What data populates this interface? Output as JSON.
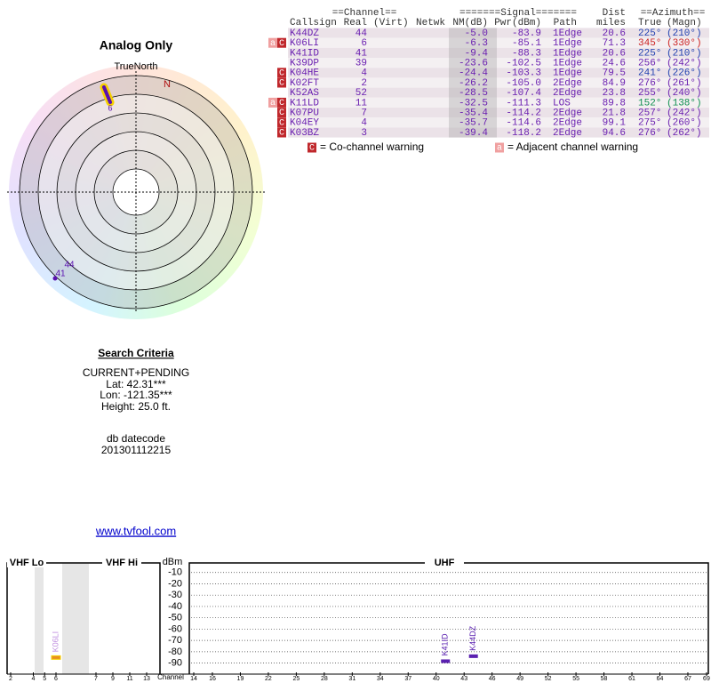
{
  "polar": {
    "title": "Analog Only",
    "north_label": "TrueNorth",
    "magnetic_north_label": "N",
    "markers": [
      "6",
      "44",
      "41"
    ]
  },
  "table": {
    "group_headers": [
      "==Channel==",
      "=======Signal=======",
      "Dist",
      "==Azimuth=="
    ],
    "columns": [
      "Callsign",
      "Real",
      "(Virt)",
      "Netwk",
      "NM(dB)",
      "Pwr(dBm)",
      "Path",
      "miles",
      "True",
      "(Magn)"
    ],
    "rows": [
      {
        "callsign": "K44DZ",
        "real": "44",
        "nm": "-5.0",
        "pwr": "-83.9",
        "path": "1Edge",
        "miles": "20.6",
        "true_az": "225°",
        "magn_az": "(210°)",
        "azimuth_color": "#2040b0"
      },
      {
        "callsign": "K06LI",
        "real": "6",
        "nm": "-6.3",
        "pwr": "-85.1",
        "path": "1Edge",
        "miles": "71.3",
        "true_az": "345°",
        "magn_az": "(330°)",
        "azimuth_color": "#cc2020",
        "flags": [
          "a",
          "C"
        ]
      },
      {
        "callsign": "K41ID",
        "real": "41",
        "nm": "-9.4",
        "pwr": "-88.3",
        "path": "1Edge",
        "miles": "20.6",
        "true_az": "225°",
        "magn_az": "(210°)",
        "azimuth_color": "#2040b0"
      },
      {
        "callsign": "K39DP",
        "real": "39",
        "nm": "-23.6",
        "pwr": "-102.5",
        "path": "1Edge",
        "miles": "24.6",
        "true_az": "256°",
        "magn_az": "(242°)",
        "azimuth_color": "#6a1fb0"
      },
      {
        "callsign": "K04HE",
        "real": "4",
        "nm": "-24.4",
        "pwr": "-103.3",
        "path": "1Edge",
        "miles": "79.5",
        "true_az": "241°",
        "magn_az": "(226°)",
        "azimuth_color": "#2040b0",
        "flags": [
          "C"
        ]
      },
      {
        "callsign": "K02FT",
        "real": "2",
        "nm": "-26.2",
        "pwr": "-105.0",
        "path": "2Edge",
        "miles": "84.9",
        "true_az": "276°",
        "magn_az": "(261°)",
        "azimuth_color": "#6a1fb0",
        "flags": [
          "C"
        ]
      },
      {
        "callsign": "K52AS",
        "real": "52",
        "nm": "-28.5",
        "pwr": "-107.4",
        "path": "2Edge",
        "miles": "23.8",
        "true_az": "255°",
        "magn_az": "(240°)",
        "azimuth_color": "#6a1fb0"
      },
      {
        "callsign": "K11LD",
        "real": "11",
        "nm": "-32.5",
        "pwr": "-111.3",
        "path": "LOS",
        "miles": "89.8",
        "true_az": "152°",
        "magn_az": "(138°)",
        "azimuth_color": "#109050",
        "flags": [
          "a",
          "C"
        ]
      },
      {
        "callsign": "K07PU",
        "real": "7",
        "nm": "-35.4",
        "pwr": "-114.2",
        "path": "2Edge",
        "miles": "21.8",
        "true_az": "257°",
        "magn_az": "(242°)",
        "azimuth_color": "#6a1fb0",
        "flags": [
          "C"
        ]
      },
      {
        "callsign": "K04EY",
        "real": "4",
        "nm": "-35.7",
        "pwr": "-114.6",
        "path": "2Edge",
        "miles": "99.1",
        "true_az": "275°",
        "magn_az": "(260°)",
        "azimuth_color": "#6a1fb0",
        "flags": [
          "C"
        ]
      },
      {
        "callsign": "K03BZ",
        "real": "3",
        "nm": "-39.4",
        "pwr": "-118.2",
        "path": "2Edge",
        "miles": "94.6",
        "true_az": "276°",
        "magn_az": "(262°)",
        "azimuth_color": "#6a1fb0",
        "flags": [
          "C"
        ]
      }
    ]
  },
  "legend": [
    {
      "flag": "C",
      "text": "= Co-channel warning"
    },
    {
      "flag": "a",
      "text": "= Adjacent channel warning"
    }
  ],
  "search": {
    "title": "Search Criteria",
    "lines": [
      "CURRENT+PENDING",
      "Lat: 42.31***",
      "Lon: -121.35***",
      "Height: 25.0 ft."
    ],
    "datecode_label": "db datecode",
    "datecode": "201301112215",
    "link": "www.tvfool.com"
  },
  "spectrum": {
    "bands": [
      "VHF Lo",
      "VHF Hi",
      "UHF"
    ],
    "y_label": "dBm",
    "x_label": "Channel",
    "ylim": [
      -95,
      0
    ],
    "yticks": [
      -10,
      -20,
      -30,
      -40,
      -50,
      -60,
      -70,
      -80,
      -90
    ],
    "vhf_channels": [
      2,
      4,
      5,
      6,
      7,
      9,
      11,
      13
    ],
    "uhf_channels": [
      14,
      16,
      19,
      22,
      25,
      28,
      31,
      34,
      37,
      40,
      43,
      46,
      49,
      52,
      55,
      58,
      61,
      64,
      67,
      69
    ],
    "signals": [
      {
        "label": "K06LI",
        "channel": 6,
        "dbm": -85.1,
        "color": "#e89020"
      },
      {
        "label": "K41ID",
        "channel": 41,
        "dbm": -88.3,
        "color": "#5a20b0"
      },
      {
        "label": "K44DZ",
        "channel": 44,
        "dbm": -83.9,
        "color": "#5a20b0"
      }
    ]
  }
}
